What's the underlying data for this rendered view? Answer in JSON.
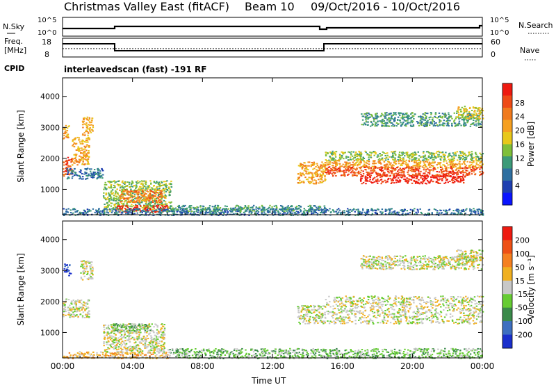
{
  "title": {
    "station": "Christmas Valley East (fitACF)",
    "beam": "Beam 10",
    "dates": "09/Oct/2016 - 10/Oct/2016"
  },
  "header_labels": {
    "nsky": "N.Sky",
    "nsearch": "N.Search",
    "freq": "Freq.",
    "mhz": "[MHz]",
    "cpid": "CPID",
    "nave": "Nave",
    "cpid_value": "interleavedscan (fast) -191 RF",
    "noise_ticks": [
      "10^5",
      "10^0"
    ],
    "freq_ticks": [
      "18",
      "8"
    ],
    "nave_ticks": [
      "60",
      "0"
    ]
  },
  "chart_data": [
    {
      "type": "heatmap",
      "name": "power",
      "ylabel": "Slant Range [km]",
      "xlabel": "Time UT",
      "x_ticks": [
        "00:00",
        "04:00",
        "08:00",
        "12:00",
        "16:00",
        "20:00",
        "00:00"
      ],
      "y_ticks": [
        "1000",
        "2000",
        "3000",
        "4000"
      ],
      "ylim": [
        180,
        4600
      ],
      "xlim": [
        0,
        24
      ],
      "colorbar": {
        "label": "Power [dB]",
        "ticks": [
          "4",
          "8",
          "12",
          "16",
          "20",
          "24",
          "28"
        ],
        "colors": [
          "#0a14ff",
          "#1e3fb0",
          "#2e6fa0",
          "#3c9a78",
          "#7fbf3a",
          "#e8c81a",
          "#f5a021",
          "#f07a1d",
          "#ee4a16",
          "#ee1a10"
        ]
      },
      "regions": [
        {
          "x0": 0.0,
          "x1": 0.55,
          "y0": 1450,
          "y1": 2050,
          "level": 8
        },
        {
          "x0": 0.5,
          "x1": 1.5,
          "y0": 1800,
          "y1": 2700,
          "level": 6
        },
        {
          "x0": 0.0,
          "x1": 0.35,
          "y0": 2650,
          "y1": 3100,
          "level": 6
        },
        {
          "x0": 1.1,
          "x1": 1.7,
          "y0": 2750,
          "y1": 3350,
          "level": 6
        },
        {
          "x0": 0.2,
          "x1": 2.3,
          "y0": 1350,
          "y1": 1700,
          "level": 2
        },
        {
          "x0": 2.3,
          "x1": 6.2,
          "y0": 300,
          "y1": 1300,
          "level": 4
        },
        {
          "x0": 3.0,
          "x1": 6.0,
          "y0": 280,
          "y1": 500,
          "level": 9
        },
        {
          "x0": 3.2,
          "x1": 5.8,
          "y0": 600,
          "y1": 1000,
          "level": 7
        },
        {
          "x0": 0.0,
          "x1": 24.0,
          "y0": 180,
          "y1": 400,
          "level": 2
        },
        {
          "x0": 6.0,
          "x1": 15.0,
          "y0": 300,
          "y1": 500,
          "level": 3
        },
        {
          "x0": 13.4,
          "x1": 15.0,
          "y0": 1200,
          "y1": 1900,
          "level": 6
        },
        {
          "x0": 15.0,
          "x1": 24.0,
          "y0": 1950,
          "y1": 2250,
          "level": 4
        },
        {
          "x0": 15.0,
          "x1": 24.0,
          "y0": 1700,
          "y1": 1950,
          "level": 6
        },
        {
          "x0": 15.0,
          "x1": 24.0,
          "y0": 1450,
          "y1": 1750,
          "level": 8
        },
        {
          "x0": 17.0,
          "x1": 23.0,
          "y0": 1200,
          "y1": 1500,
          "level": 9
        },
        {
          "x0": 17.0,
          "x1": 24.0,
          "y0": 3050,
          "y1": 3500,
          "level": 3
        },
        {
          "x0": 22.5,
          "x1": 24.0,
          "y0": 3300,
          "y1": 3700,
          "level": 5
        }
      ]
    },
    {
      "type": "heatmap",
      "name": "velocity",
      "ylabel": "Slant Range [km]",
      "xlabel": "Time UT",
      "x_ticks": [
        "00:00",
        "04:00",
        "08:00",
        "12:00",
        "16:00",
        "20:00",
        "00:00"
      ],
      "y_ticks": [
        "1000",
        "2000",
        "3000",
        "4000"
      ],
      "ylim": [
        180,
        4600
      ],
      "xlim": [
        0,
        24
      ],
      "colorbar": {
        "label": "Velocity [m s⁻¹]",
        "ticks": [
          "200",
          "100",
          "50",
          "15",
          "-15",
          "-50",
          "-100",
          "-200"
        ],
        "colors": [
          "#1a2fcc",
          "#3e6fc0",
          "#3a8a4a",
          "#66cc33",
          "#c8c8c8",
          "#f0b020",
          "#f58020",
          "#ee5015",
          "#ee1a10"
        ]
      },
      "regions": [
        {
          "x0": 0.05,
          "x1": 0.45,
          "y0": 2850,
          "y1": 3250,
          "level": 0
        },
        {
          "x0": 0.0,
          "x1": 1.5,
          "y0": 1500,
          "y1": 2100,
          "level": 4
        },
        {
          "x0": 1.0,
          "x1": 1.7,
          "y0": 2700,
          "y1": 3350,
          "level": 4
        },
        {
          "x0": 2.3,
          "x1": 5.8,
          "y0": 350,
          "y1": 1300,
          "level": 4
        },
        {
          "x0": 2.8,
          "x1": 5.0,
          "y0": 1050,
          "y1": 1300,
          "level": 3
        },
        {
          "x0": 0.0,
          "x1": 6.0,
          "y0": 180,
          "y1": 400,
          "level": 5
        },
        {
          "x0": 6.0,
          "x1": 24.0,
          "y0": 180,
          "y1": 500,
          "level": 3
        },
        {
          "x0": 13.4,
          "x1": 15.0,
          "y0": 1300,
          "y1": 1900,
          "level": 4
        },
        {
          "x0": 15.0,
          "x1": 24.0,
          "y0": 1300,
          "y1": 2200,
          "level": 4
        },
        {
          "x0": 17.0,
          "x1": 24.0,
          "y0": 3050,
          "y1": 3500,
          "level": 4
        },
        {
          "x0": 22.5,
          "x1": 24.0,
          "y0": 3300,
          "y1": 3700,
          "level": 4
        }
      ]
    }
  ]
}
